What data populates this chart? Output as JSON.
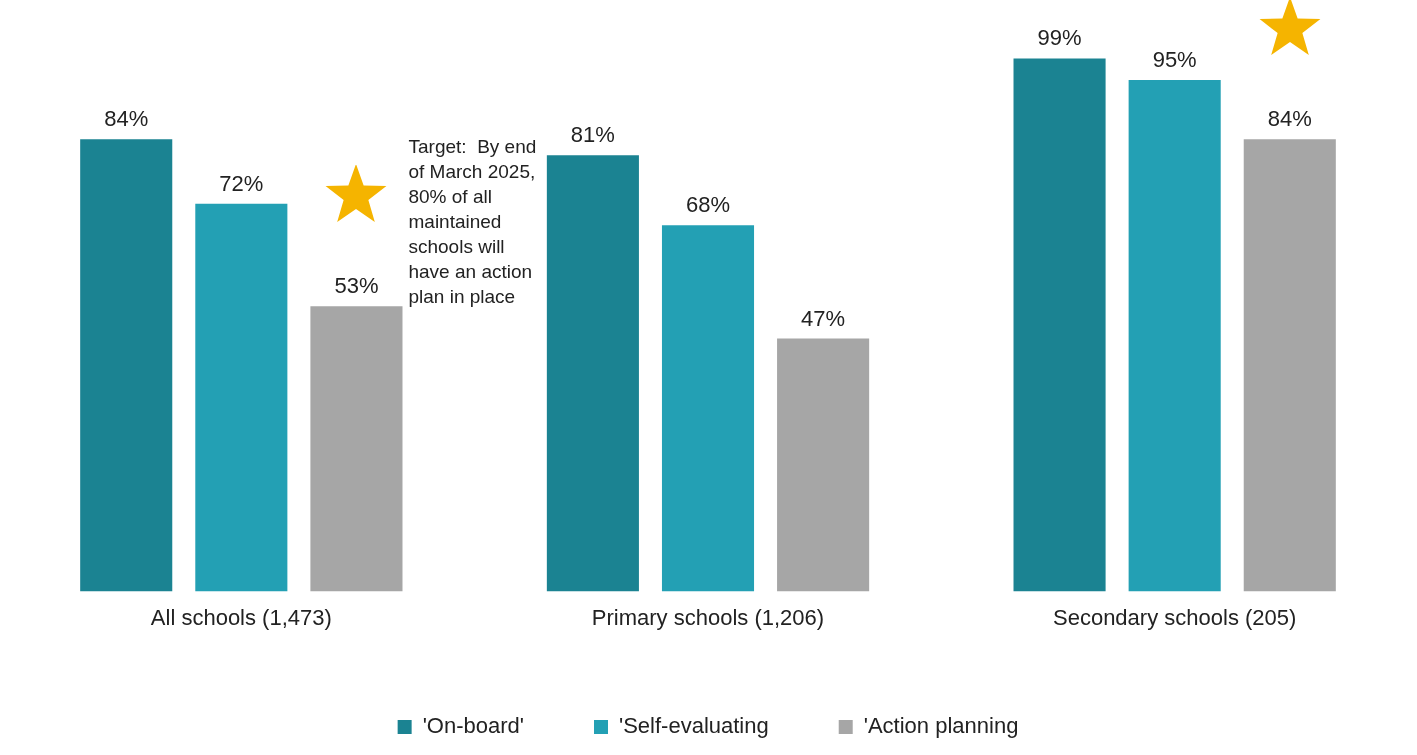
{
  "chart_data": {
    "type": "bar",
    "categories": [
      "All schools (1,473)",
      "Primary schools (1,206)",
      "Secondary schools (205)"
    ],
    "series": [
      {
        "name": "'On-board'",
        "color": "#1b8392",
        "values": [
          84,
          81,
          99
        ],
        "value_labels": [
          "84%",
          "81%",
          "99%"
        ]
      },
      {
        "name": "'Self-evaluating",
        "color": "#23a0b4",
        "values": [
          72,
          68,
          95
        ],
        "value_labels": [
          "72%",
          "68%",
          "95%"
        ]
      },
      {
        "name": "'Action planning",
        "color": "#a6a6a6",
        "values": [
          53,
          47,
          84
        ],
        "value_labels": [
          "53%",
          "47%",
          "84%"
        ]
      }
    ],
    "legend": "bottom",
    "grid": false,
    "annotations": [
      "Target:  By end of March 2025, 80% of all maintained schools will have an action plan in place"
    ]
  }
}
